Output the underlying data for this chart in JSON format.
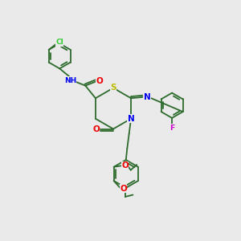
{
  "bg_color": "#eaeaea",
  "bond_color": "#2d6b2d",
  "atom_colors": {
    "N": "#0000ee",
    "O": "#ee0000",
    "S": "#bbbb00",
    "Cl": "#33cc33",
    "F": "#cc00cc",
    "C": "#2d6b2d"
  },
  "lw": 1.3,
  "fs": 6.5
}
